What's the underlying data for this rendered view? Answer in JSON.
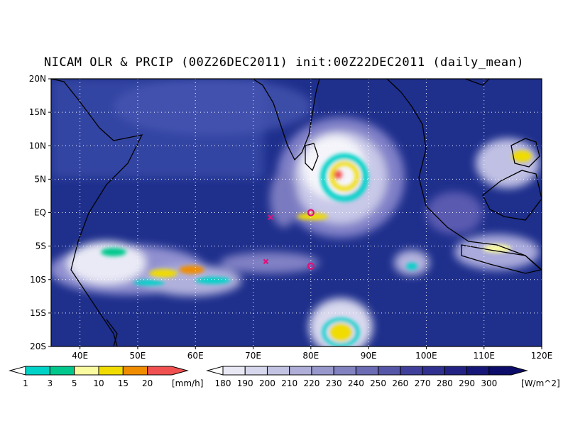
{
  "title": "NICAM OLR & PRCIP (00Z26DEC2011) init:00Z22DEC2011 (daily_mean)",
  "map": {
    "region": "Indian Ocean / Maritime Continent",
    "lon_range": [
      35,
      120
    ],
    "lat_range": [
      -20,
      20
    ],
    "grid": true,
    "lat_labels": [
      "20N",
      "15N",
      "10N",
      "5N",
      "EQ",
      "5S",
      "10S",
      "15S",
      "20S"
    ],
    "lat_values": [
      20,
      15,
      10,
      5,
      0,
      -5,
      -10,
      -15,
      -20
    ],
    "lon_labels": [
      "40E",
      "50E",
      "60E",
      "70E",
      "80E",
      "90E",
      "100E",
      "110E",
      "120E"
    ],
    "lon_values": [
      40,
      50,
      60,
      70,
      80,
      90,
      100,
      110,
      120
    ],
    "background_color": "#1e2f8c",
    "markers": [
      {
        "type": "circle",
        "lon": 80,
        "lat": 0,
        "color": "#e0107a"
      },
      {
        "type": "circle",
        "lon": 80,
        "lat": -8,
        "color": "#e0107a"
      },
      {
        "type": "cross",
        "lon": 73,
        "lat": -0.7,
        "color": "#e0107a"
      },
      {
        "type": "cross",
        "lon": 72.2,
        "lat": -7.3,
        "color": "#e0107a"
      }
    ]
  },
  "precip_colorbar": {
    "unit": "[mm/h]",
    "labels": [
      "1",
      "3",
      "5",
      "10",
      "15",
      "20"
    ],
    "colors": [
      "#00d2c8",
      "#00c88c",
      "#fafaa0",
      "#f0dc00",
      "#f08c00",
      "#f05050"
    ]
  },
  "olr_colorbar": {
    "unit": "[W/m^2]",
    "labels": [
      "180",
      "190",
      "200",
      "210",
      "220",
      "230",
      "240",
      "250",
      "260",
      "270",
      "280",
      "290",
      "300"
    ],
    "colors": [
      "#e8e8f4",
      "#d6d6ec",
      "#c2c2e2",
      "#aeaed8",
      "#9898cc",
      "#8282c0",
      "#6c6cb4",
      "#5656a8",
      "#40409c",
      "#303090",
      "#222284",
      "#161678",
      "#0c0c6a"
    ]
  }
}
